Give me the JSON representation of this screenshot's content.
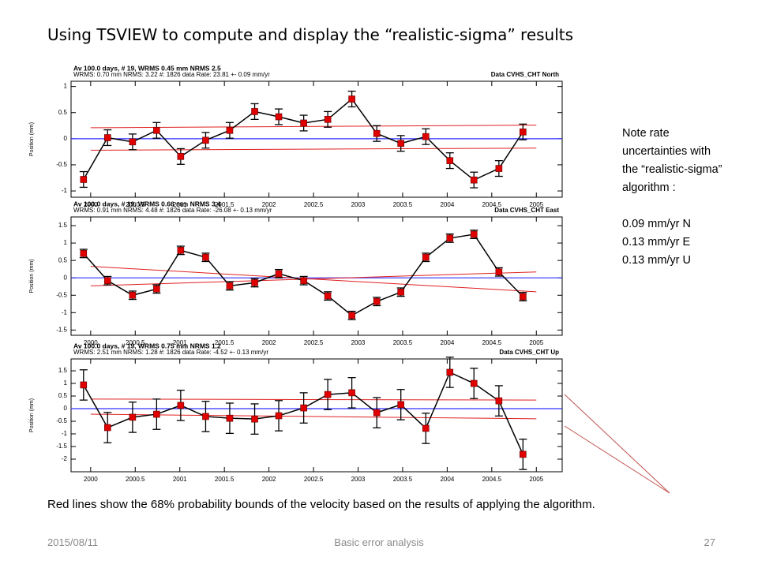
{
  "slide": {
    "title": "Using TSVIEW to compute and display the “realistic-sigma” results",
    "notes": [
      "Note rate uncertainties with the “realistic-sigma” algorithm :",
      "0.09  mm/yr N",
      "0.13 mm/yr E",
      "0.13 mm/yr U"
    ],
    "caption": "Red lines show the 68% probability bounds of the velocity based on the results of applying the algorithm.",
    "footer_date": "2015/08/11",
    "footer_center": "Basic error analysis",
    "page_number": "27"
  },
  "chart_data": [
    {
      "type": "line",
      "header_left": "Av 100.0 days, # 19, WRMS   0.45 mm NRMS   2.5",
      "header_left2": "WRMS:    0.70 mm NRMS:    3.22 #:   1826 data   Rate:      23.81 +-    0.09 mm/yr",
      "header_right": "Data CVHS_CHT North",
      "ylabel": "Position (mm)",
      "color": "#e00000",
      "line_color": "#000000",
      "zero_color": "#3030ff",
      "bound_color": "#e02020",
      "x": [
        1999.92,
        2000.19,
        2000.47,
        2000.74,
        2001.01,
        2001.29,
        2001.56,
        2001.84,
        2002.11,
        2002.39,
        2002.66,
        2002.93,
        2003.21,
        2003.48,
        2003.76,
        2004.03,
        2004.3,
        2004.58,
        2004.85
      ],
      "values": [
        -0.78,
        0.02,
        -0.06,
        0.16,
        -0.34,
        -0.03,
        0.16,
        0.52,
        0.42,
        0.3,
        0.37,
        0.76,
        0.1,
        -0.09,
        0.04,
        -0.42,
        -0.79,
        -0.57,
        0.13
      ],
      "errors": [
        0.15,
        0.15,
        0.15,
        0.15,
        0.15,
        0.15,
        0.15,
        0.15,
        0.15,
        0.15,
        0.15,
        0.15,
        0.15,
        0.15,
        0.15,
        0.15,
        0.15,
        0.15,
        0.15
      ],
      "bounds": [
        {
          "x": [
            2000,
            2005
          ],
          "values": [
            0.21,
            0.26
          ]
        },
        {
          "x": [
            2000,
            2005
          ],
          "values": [
            -0.22,
            -0.18
          ]
        }
      ],
      "xlim": [
        1999.78,
        2005.29
      ],
      "ylim": [
        -1.12,
        1.1
      ],
      "xticks": [
        2000,
        2000.5,
        2001,
        2001.5,
        2002,
        2002.5,
        2003,
        2003.5,
        2004,
        2004.5,
        2005
      ],
      "yticks": [
        -1,
        -0.5,
        0,
        0.5,
        1
      ]
    },
    {
      "type": "line",
      "header_left": "Av 100.0 days, # 19, WRMS   0.66 mm NRMS   3.4",
      "header_left2": "WRMS:    0.91 mm NRMS:    4.48 #:   1826 data   Rate:     -26.08 +-    0.13 mm/yr",
      "header_right": "Data CVHS_CHT East",
      "ylabel": "Position (mm)",
      "color": "#e00000",
      "line_color": "#000000",
      "zero_color": "#3030ff",
      "bound_color": "#e02020",
      "x": [
        1999.92,
        2000.19,
        2000.47,
        2000.74,
        2001.01,
        2001.29,
        2001.56,
        2001.84,
        2002.11,
        2002.39,
        2002.66,
        2002.93,
        2003.21,
        2003.48,
        2003.76,
        2004.03,
        2004.3,
        2004.58,
        2004.85
      ],
      "values": [
        0.7,
        -0.08,
        -0.5,
        -0.32,
        0.79,
        0.59,
        -0.23,
        -0.14,
        0.12,
        -0.08,
        -0.52,
        -1.08,
        -0.68,
        -0.41,
        0.59,
        1.14,
        1.25,
        0.17,
        -0.54
      ],
      "errors": [
        0.12,
        0.12,
        0.12,
        0.12,
        0.12,
        0.12,
        0.12,
        0.12,
        0.12,
        0.12,
        0.12,
        0.12,
        0.12,
        0.12,
        0.12,
        0.12,
        0.12,
        0.12,
        0.12
      ],
      "bounds": [
        {
          "x": [
            2000,
            2005
          ],
          "values": [
            0.33,
            -0.4
          ]
        },
        {
          "x": [
            2000,
            2005
          ],
          "values": [
            -0.23,
            0.17
          ]
        }
      ],
      "xlim": [
        1999.78,
        2005.29
      ],
      "ylim": [
        -1.65,
        1.75
      ],
      "xticks": [
        2000,
        2000.5,
        2001,
        2001.5,
        2002,
        2002.5,
        2003,
        2003.5,
        2004,
        2004.5,
        2005
      ],
      "yticks": [
        -1.5,
        -1,
        -0.5,
        0,
        0.5,
        1,
        1.5
      ]
    },
    {
      "type": "line",
      "header_left": "Av 100.0 days, # 19, WRMS   0.75 mm NRMS   1.2",
      "header_left2": "WRMS:    2.51 mm NRMS:    1.28 #:   1826 data   Rate:      -4.52 +-    0.13 mm/yr",
      "header_right": "Data CVHS_CHT Up",
      "ylabel": "Position (mm)",
      "color": "#e00000",
      "line_color": "#000000",
      "zero_color": "#3030ff",
      "bound_color": "#e02020",
      "x": [
        1999.92,
        2000.19,
        2000.47,
        2000.74,
        2001.01,
        2001.29,
        2001.56,
        2001.84,
        2002.11,
        2002.39,
        2002.66,
        2002.93,
        2003.21,
        2003.48,
        2003.76,
        2004.03,
        2004.3,
        2004.58,
        2004.85
      ],
      "values": [
        0.94,
        -0.75,
        -0.34,
        -0.22,
        0.13,
        -0.31,
        -0.38,
        -0.41,
        -0.28,
        0.03,
        0.56,
        0.63,
        -0.16,
        0.16,
        -0.78,
        1.44,
        1.0,
        0.31,
        -1.81
      ],
      "errors": [
        0.6,
        0.6,
        0.6,
        0.6,
        0.6,
        0.6,
        0.6,
        0.6,
        0.6,
        0.6,
        0.6,
        0.6,
        0.6,
        0.6,
        0.6,
        0.6,
        0.6,
        0.6,
        0.6
      ],
      "bounds": [
        {
          "x": [
            2000,
            2005
          ],
          "values": [
            0.38,
            0.34
          ]
        },
        {
          "x": [
            2000,
            2005
          ],
          "values": [
            -0.22,
            -0.4
          ]
        }
      ],
      "xlim": [
        1999.78,
        2005.29
      ],
      "ylim": [
        -2.5,
        1.97
      ],
      "xticks": [
        2000,
        2000.5,
        2001,
        2001.5,
        2002,
        2002.5,
        2003,
        2003.5,
        2004,
        2004.5,
        2005
      ],
      "yticks": [
        -2,
        -1.5,
        -1,
        -0.5,
        0,
        0.5,
        1,
        1.5
      ]
    }
  ]
}
